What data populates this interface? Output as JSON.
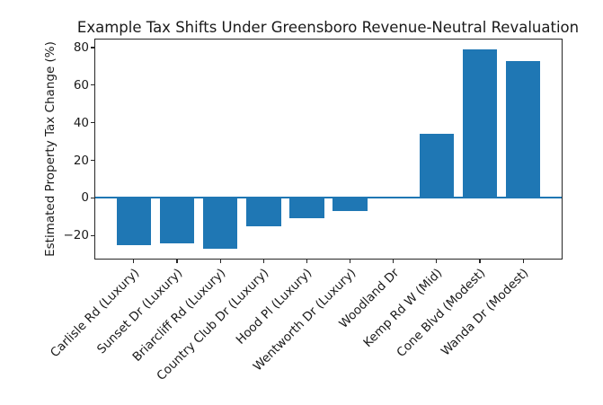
{
  "chart_data": {
    "type": "bar",
    "title": "Example Tax Shifts Under Greensboro Revenue-Neutral Revaluation",
    "xlabel": "",
    "ylabel": "Estimated Property Tax Change (%)",
    "categories": [
      "Carlisle Rd (Luxury)",
      "Sunset Dr (Luxury)",
      "Briarcliff Rd (Luxury)",
      "Country Club Dr (Luxury)",
      "Hood Pl (Luxury)",
      "Wentworth Dr (Luxury)",
      "Woodland Dr",
      "Kemp Rd W (Mid)",
      "Cone Blvd (Modest)",
      "Wanda Dr (Modest)"
    ],
    "values": [
      -25,
      -24,
      -27,
      -15,
      -11,
      -7,
      0,
      34,
      79,
      73
    ],
    "yticks": [
      -20,
      0,
      20,
      40,
      60,
      80
    ],
    "ylim": [
      -32.3,
      84.3
    ],
    "bar_color": "#1f77b4",
    "zero_line_color": "#1f77b4",
    "text_color": "#1a1a1a",
    "spine_color": "#262626",
    "background": "#ffffff",
    "grid": false,
    "legend": "none",
    "x_tick_rotation_deg": 45
  }
}
